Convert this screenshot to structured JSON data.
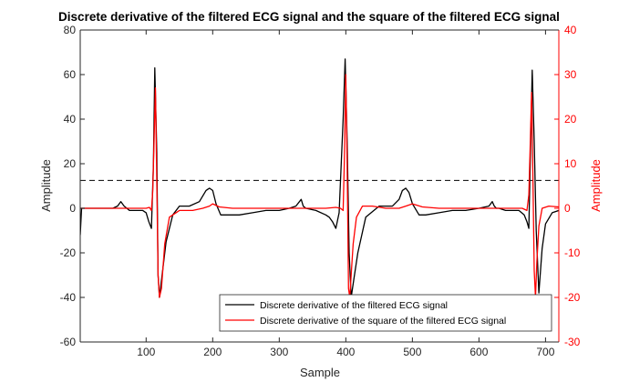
{
  "chart_data": {
    "type": "line",
    "title": "Discrete derivative of the filtered ECG signal and the square of the filtered ECG signal",
    "xlabel": "Sample",
    "ylabel_left": "Amplitude",
    "ylabel_right": "Amplitude",
    "xlim": [
      1,
      720
    ],
    "ylim_left": [
      -60,
      80
    ],
    "ylim_right": [
      -30,
      40
    ],
    "xticks": [
      100,
      200,
      300,
      400,
      500,
      600,
      700
    ],
    "yticks_left": [
      -60,
      -40,
      -20,
      0,
      20,
      40,
      60,
      80
    ],
    "yticks_right": [
      -30,
      -20,
      -10,
      0,
      10,
      20,
      30,
      40
    ],
    "grid": false,
    "legend_position": "bottom-right",
    "threshold": {
      "value": 12.5,
      "style": "dashed",
      "color": "#000000",
      "axis": "left"
    },
    "series": [
      {
        "name": "Discrete derivative of the filtered ECG signal",
        "axis": "left",
        "color": "#000000",
        "x": [
          1,
          3,
          20,
          50,
          57,
          62,
          67,
          75,
          85,
          95,
          100,
          104,
          108,
          111,
          113,
          116,
          118,
          120,
          124,
          130,
          140,
          150,
          165,
          180,
          190,
          195,
          200,
          205,
          212,
          220,
          240,
          260,
          280,
          300,
          315,
          325,
          333,
          336,
          340,
          355,
          370,
          375,
          380,
          385,
          390,
          396,
          399,
          402,
          405,
          408,
          412,
          418,
          430,
          450,
          470,
          480,
          485,
          490,
          495,
          500,
          510,
          520,
          540,
          560,
          580,
          600,
          615,
          620,
          623,
          626,
          630,
          640,
          660,
          668,
          672,
          675,
          677,
          680,
          683,
          686,
          690,
          695,
          700,
          710,
          720
        ],
        "y": [
          -12,
          0,
          0,
          0,
          1,
          3,
          1,
          -1,
          -1,
          -1,
          -2,
          -6,
          -9,
          20,
          63,
          25,
          -30,
          -40,
          -30,
          -15,
          -3,
          1,
          1,
          3,
          8,
          9,
          8,
          2,
          -3,
          -3,
          -3,
          -2,
          -1,
          -1,
          0,
          1,
          4,
          1,
          0,
          -1,
          -3,
          -4,
          -6,
          -9,
          -2,
          40,
          67,
          30,
          -20,
          -40,
          -32,
          -20,
          -4,
          1,
          1,
          4,
          8,
          9,
          7,
          2,
          -3,
          -3,
          -2,
          -1,
          -1,
          0,
          1,
          3,
          1,
          0,
          0,
          -1,
          -1,
          -3,
          -6,
          -9,
          20,
          62,
          30,
          -10,
          -38,
          -18,
          -7,
          -2,
          -1
        ]
      },
      {
        "name": "Discrete derivative of the square of the filtered ECG signal",
        "axis": "right",
        "color": "#ff0000",
        "x": [
          1,
          100,
          105,
          108,
          110,
          112,
          114,
          116,
          118,
          120,
          123,
          128,
          135,
          150,
          170,
          185,
          195,
          200,
          210,
          230,
          260,
          300,
          340,
          370,
          385,
          392,
          396,
          398,
          400,
          402,
          404,
          406,
          408,
          411,
          416,
          425,
          440,
          460,
          480,
          490,
          500,
          515,
          540,
          580,
          620,
          650,
          665,
          672,
          675,
          677,
          679,
          681,
          683,
          685,
          687,
          690,
          695,
          705,
          720
        ],
        "y": [
          0,
          0,
          0.2,
          -0.5,
          4,
          16,
          27,
          6,
          -15,
          -20,
          -18,
          -8,
          -2,
          -0.5,
          -0.5,
          0,
          0.5,
          1,
          0.3,
          0,
          0,
          0,
          0,
          0,
          0.2,
          0,
          -0.5,
          12,
          30,
          10,
          -18,
          -20,
          -15,
          -8,
          -2,
          0.5,
          0.5,
          0,
          0,
          0.5,
          1,
          0.3,
          0,
          0,
          0,
          0,
          0,
          -0.5,
          3,
          14,
          26,
          8,
          -14,
          -20,
          -12,
          -4,
          0,
          0.5,
          0.3
        ]
      }
    ]
  }
}
